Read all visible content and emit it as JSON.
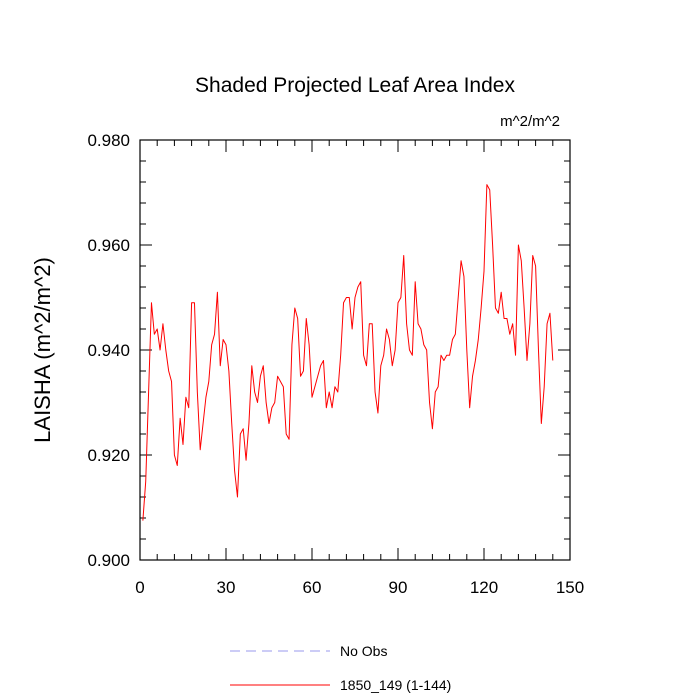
{
  "chart_data": {
    "type": "line",
    "title": "Shaded Projected Leaf Area Index",
    "units": "m^2/m^2",
    "ylabel": "LAISHA  (m^2/m^2)",
    "xlabel": "",
    "xlim": [
      0,
      150
    ],
    "ylim": [
      0.9,
      0.98
    ],
    "xticks": [
      0,
      30,
      60,
      90,
      120,
      150
    ],
    "xtick_labels": [
      "0",
      "30",
      "60",
      "90",
      "120",
      "150"
    ],
    "yticks": [
      0.9,
      0.92,
      0.94,
      0.96,
      0.98
    ],
    "ytick_labels": [
      "0.900",
      "0.920",
      "0.940",
      "0.960",
      "0.980"
    ],
    "grid": false,
    "legend_position": "bottom-center",
    "legend": [
      {
        "label": "No Obs",
        "style": "dashed",
        "color": "#9999ee"
      },
      {
        "label": "1850_149 (1-144)",
        "style": "solid",
        "color": "#ff0000"
      }
    ],
    "series": [
      {
        "name": "1850_149 (1-144)",
        "color": "#ff0000",
        "x": [
          1,
          2,
          3,
          4,
          5,
          6,
          7,
          8,
          9,
          10,
          11,
          12,
          13,
          14,
          15,
          16,
          17,
          18,
          19,
          20,
          21,
          22,
          23,
          24,
          25,
          26,
          27,
          28,
          29,
          30,
          31,
          32,
          33,
          34,
          35,
          36,
          37,
          38,
          39,
          40,
          41,
          42,
          43,
          44,
          45,
          46,
          47,
          48,
          49,
          50,
          51,
          52,
          53,
          54,
          55,
          56,
          57,
          58,
          59,
          60,
          61,
          62,
          63,
          64,
          65,
          66,
          67,
          68,
          69,
          70,
          71,
          72,
          73,
          74,
          75,
          76,
          77,
          78,
          79,
          80,
          81,
          82,
          83,
          84,
          85,
          86,
          87,
          88,
          89,
          90,
          91,
          92,
          93,
          94,
          95,
          96,
          97,
          98,
          99,
          100,
          101,
          102,
          103,
          104,
          105,
          106,
          107,
          108,
          109,
          110,
          111,
          112,
          113,
          114,
          115,
          116,
          117,
          118,
          119,
          120,
          121,
          122,
          123,
          124,
          125,
          126,
          127,
          128,
          129,
          130,
          131,
          132,
          133,
          134,
          135,
          136,
          137,
          138,
          139,
          140,
          141,
          142,
          143,
          144
        ],
        "values": [
          0.9075,
          0.915,
          0.932,
          0.949,
          0.943,
          0.944,
          0.94,
          0.945,
          0.94,
          0.936,
          0.934,
          0.92,
          0.918,
          0.927,
          0.922,
          0.931,
          0.929,
          0.949,
          0.949,
          0.932,
          0.921,
          0.926,
          0.931,
          0.934,
          0.941,
          0.943,
          0.951,
          0.937,
          0.942,
          0.941,
          0.936,
          0.926,
          0.917,
          0.912,
          0.924,
          0.925,
          0.919,
          0.926,
          0.937,
          0.932,
          0.93,
          0.935,
          0.937,
          0.93,
          0.926,
          0.929,
          0.93,
          0.935,
          0.934,
          0.933,
          0.924,
          0.923,
          0.941,
          0.948,
          0.946,
          0.935,
          0.936,
          0.946,
          0.941,
          0.931,
          0.933,
          0.935,
          0.937,
          0.938,
          0.929,
          0.932,
          0.929,
          0.933,
          0.932,
          0.939,
          0.949,
          0.95,
          0.95,
          0.944,
          0.95,
          0.952,
          0.953,
          0.939,
          0.937,
          0.945,
          0.945,
          0.932,
          0.928,
          0.937,
          0.939,
          0.944,
          0.942,
          0.937,
          0.94,
          0.949,
          0.95,
          0.958,
          0.945,
          0.94,
          0.939,
          0.953,
          0.945,
          0.944,
          0.941,
          0.94,
          0.93,
          0.925,
          0.932,
          0.933,
          0.939,
          0.938,
          0.939,
          0.939,
          0.942,
          0.943,
          0.95,
          0.957,
          0.954,
          0.94,
          0.929,
          0.935,
          0.938,
          0.942,
          0.948,
          0.955,
          0.9715,
          0.9705,
          0.96,
          0.948,
          0.947,
          0.951,
          0.946,
          0.946,
          0.943,
          0.945,
          0.939,
          0.96,
          0.957,
          0.948,
          0.938,
          0.945,
          0.958,
          0.956,
          0.94,
          0.926,
          0.933,
          0.945,
          0.947,
          0.938
        ]
      }
    ]
  }
}
